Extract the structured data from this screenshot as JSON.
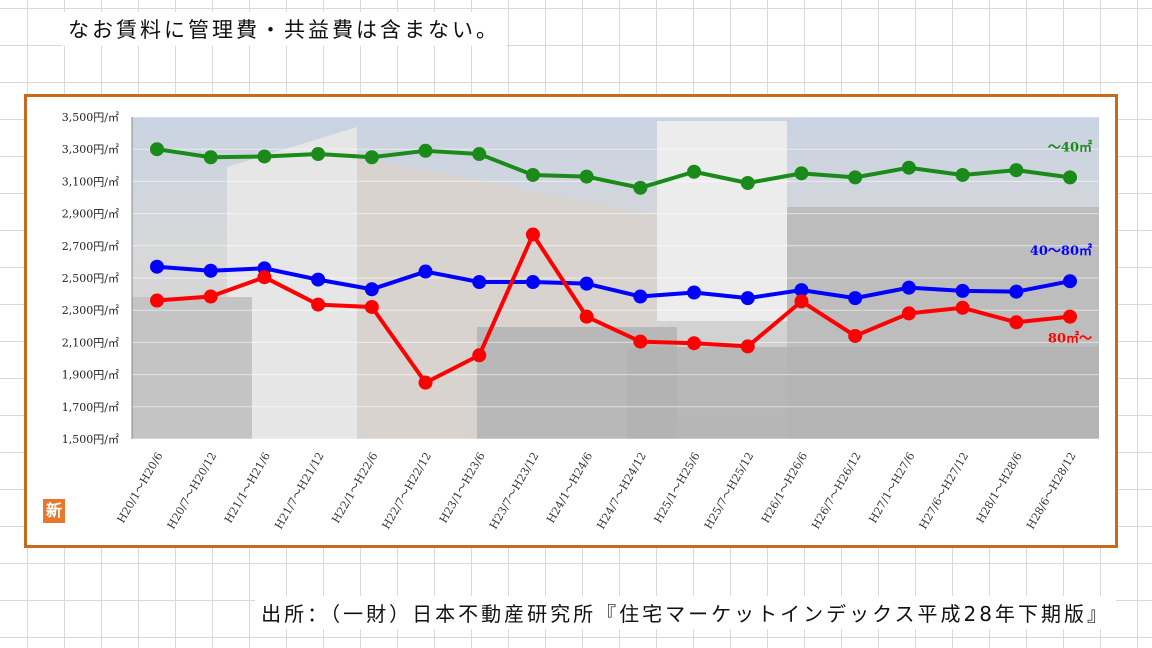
{
  "header": {
    "note": "なお賃料に管理費・共益費は含まない。"
  },
  "footer": {
    "source": "出所：（一財）日本不動産研究所『住宅マーケットインデックス平成28年下期版』"
  },
  "badge": {
    "label": "新"
  },
  "colors": {
    "frame": "#c86a1e",
    "small": "#1a8a1a",
    "medium": "#0000ff",
    "large": "#ff0000"
  },
  "chart_data": {
    "type": "line",
    "title": "",
    "xlabel": "",
    "ylabel": "",
    "ylim": [
      1500,
      3500
    ],
    "yticks": [
      1500,
      1700,
      1900,
      2100,
      2300,
      2500,
      2700,
      2900,
      3100,
      3300,
      3500
    ],
    "ytick_labels": [
      "1,500円/㎡",
      "1,700円/㎡",
      "1,900円/㎡",
      "2,100円/㎡",
      "2,300円/㎡",
      "2,500円/㎡",
      "2,700円/㎡",
      "2,900円/㎡",
      "3,100円/㎡",
      "3,300円/㎡",
      "3,500円/㎡"
    ],
    "categories": [
      "H20/1～H20/6",
      "H20/7～H20/12",
      "H21/1～H21/6",
      "H21/7～H21/12",
      "H22/1～H22/6",
      "H22/7～H22/12",
      "H23/1～H23/6",
      "H23/7～H23/12",
      "H24/1～H24/6",
      "H24/7～H24/12",
      "H25/1～H25/6",
      "H25/7～H25/12",
      "H26/1～H26/6",
      "H26/7～H26/12",
      "H27/1～H27/6",
      "H27/6～H27/12",
      "H28/1～H28/6",
      "H28/6～H28/12"
    ],
    "series": [
      {
        "name": "～40㎡",
        "color": "#1a8a1a",
        "values": [
          3300,
          3250,
          3255,
          3270,
          3250,
          3290,
          3270,
          3140,
          3130,
          3060,
          3160,
          3090,
          3150,
          3125,
          3185,
          3140,
          3170,
          3125
        ]
      },
      {
        "name": "40～80㎡",
        "color": "#0000ff",
        "values": [
          2570,
          2545,
          2560,
          2490,
          2430,
          2540,
          2475,
          2475,
          2465,
          2385,
          2410,
          2375,
          2425,
          2375,
          2440,
          2420,
          2415,
          2480
        ]
      },
      {
        "name": "80㎡～",
        "color": "#ff0000",
        "values": [
          2360,
          2385,
          2505,
          2335,
          2320,
          1850,
          2020,
          2770,
          2260,
          2105,
          2095,
          2075,
          2355,
          2140,
          2280,
          2315,
          2225,
          2260
        ]
      }
    ],
    "grid": true,
    "legend": "inline-right"
  }
}
